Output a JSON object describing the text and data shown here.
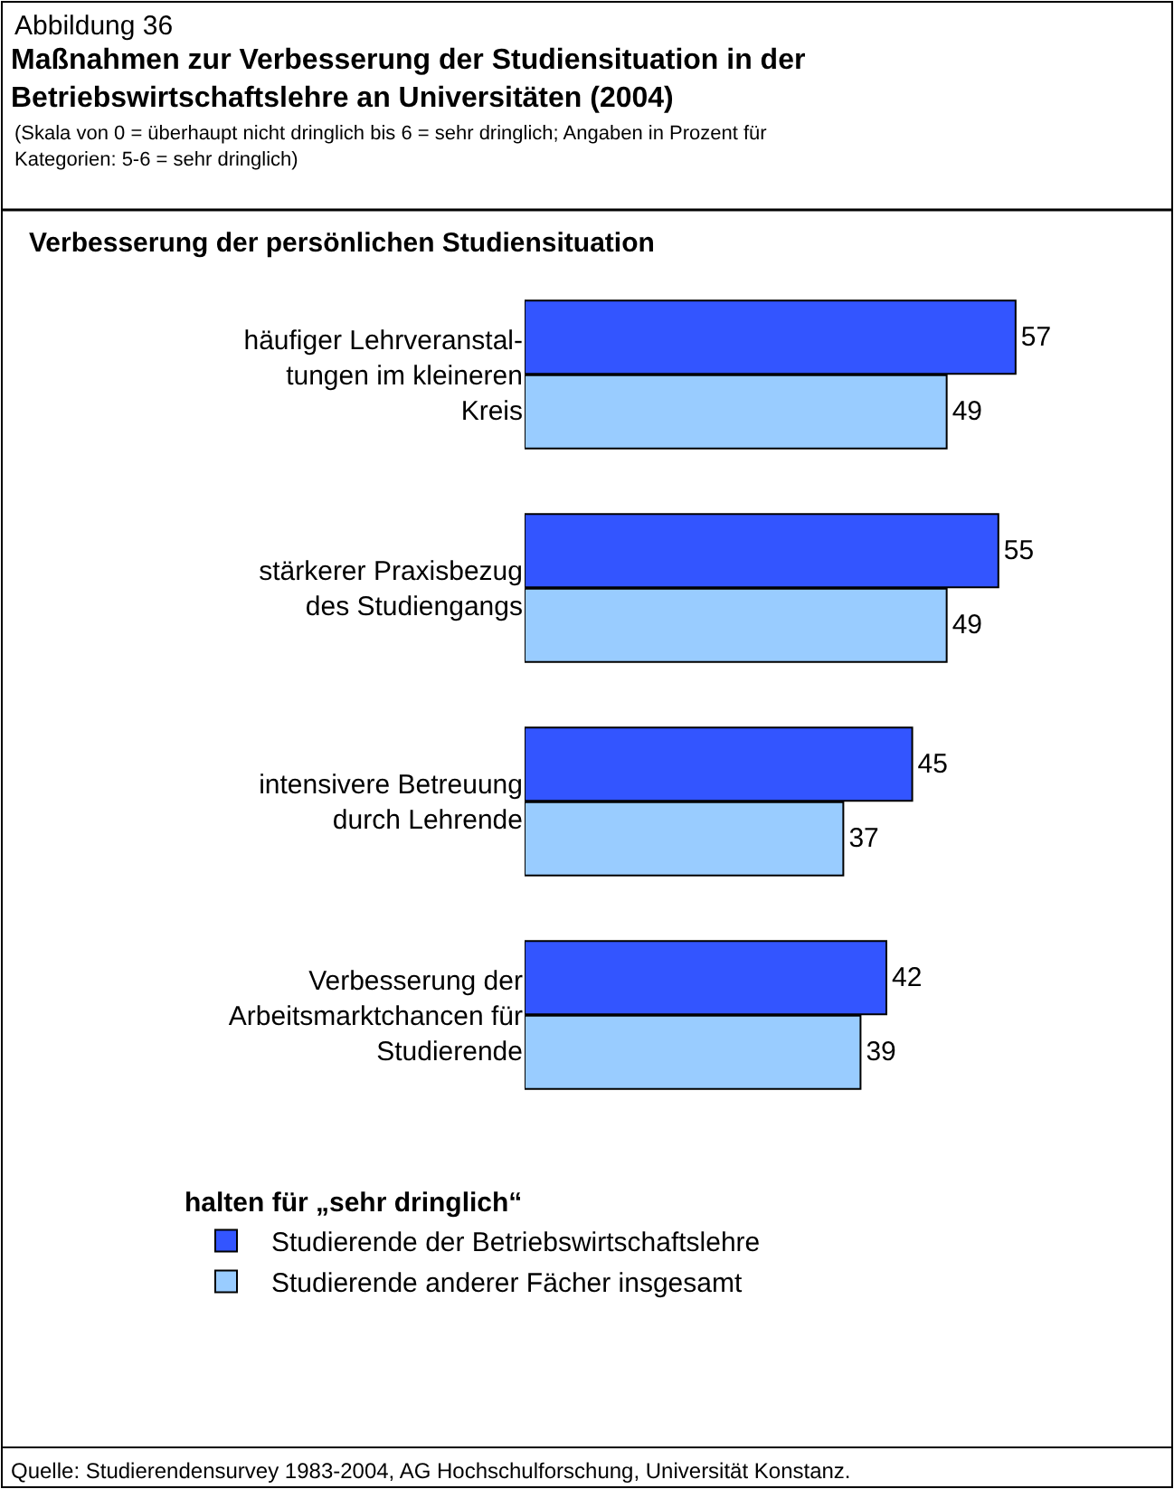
{
  "chart_data": {
    "type": "bar",
    "orientation": "horizontal",
    "title": "Maßnahmen zur Verbesserung der Studiensituation in der Betriebswirtschaftslehre an Universitäten (2004)",
    "subtitle": "(Skala von 0 = überhaupt nicht dringlich bis 6 = sehr dringlich; Angaben in Prozent für Kategorien: 5-6 = sehr dringlich)",
    "categories": [
      "häufiger Lehrveranstal- tungen im kleineren Kreis",
      "stärkerer Praxisbezug des Studiengangs",
      "intensivere Betreuung durch Lehrende",
      "Verbesserung der Arbeitsmarktchancen für Studierende"
    ],
    "series": [
      {
        "name": "Studierende der Betriebswirtschaftslehre",
        "color": "#3355ff",
        "values": [
          57,
          55,
          45,
          42
        ]
      },
      {
        "name": "Studierende anderer Fächer insgesamt",
        "color": "#99ccff",
        "values": [
          49,
          49,
          37,
          39
        ]
      }
    ],
    "data_labels": true,
    "legend": "bottom",
    "legend_title": "halten für „sehr dringlich“",
    "annotations": [
      "Abbildung 36",
      "Verbesserung der persönlichen Studiensituation",
      "Quelle: Studierendensurvey 1983-2004, AG Hochschulforschung, Universität Konstanz."
    ]
  }
}
